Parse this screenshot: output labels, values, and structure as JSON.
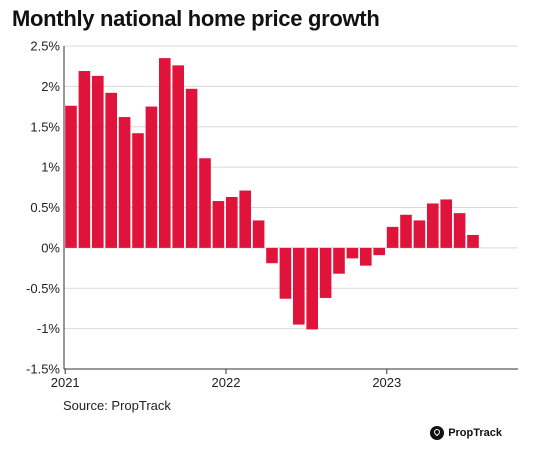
{
  "page": {
    "title": "Monthly national home price growth",
    "source": "Source: PropTrack",
    "brand": "PropTrack"
  },
  "colors": {
    "bar": "#e0133a",
    "grid": "#d9d9d9",
    "axis": "#333333"
  },
  "chart_data": {
    "type": "bar",
    "title": "Monthly national home price growth",
    "xlabel": "",
    "ylabel": "",
    "ylim": [
      -1.5,
      2.5
    ],
    "yticks": [
      {
        "value": 2.5,
        "label": "2.5%"
      },
      {
        "value": 2.0,
        "label": "2%"
      },
      {
        "value": 1.5,
        "label": "1.5%"
      },
      {
        "value": 1.0,
        "label": "1%"
      },
      {
        "value": 0.5,
        "label": "0.5%"
      },
      {
        "value": 0.0,
        "label": "0%"
      },
      {
        "value": -0.5,
        "label": "-0.5%"
      },
      {
        "value": -1.0,
        "label": "-1%"
      },
      {
        "value": -1.5,
        "label": "-1.5%"
      }
    ],
    "xticks": [
      {
        "index": 0,
        "label": "2021"
      },
      {
        "index": 12,
        "label": "2022"
      },
      {
        "index": 24,
        "label": "2023"
      }
    ],
    "grid": true,
    "legend": "none",
    "categories": [
      "Jan 2021",
      "Feb 2021",
      "Mar 2021",
      "Apr 2021",
      "May 2021",
      "Jun 2021",
      "Jul 2021",
      "Aug 2021",
      "Sep 2021",
      "Oct 2021",
      "Nov 2021",
      "Dec 2021",
      "Jan 2022",
      "Feb 2022",
      "Mar 2022",
      "Apr 2022",
      "May 2022",
      "Jun 2022",
      "Jul 2022",
      "Aug 2022",
      "Sep 2022",
      "Oct 2022",
      "Nov 2022",
      "Dec 2022",
      "Jan 2023",
      "Feb 2023",
      "Mar 2023",
      "Apr 2023",
      "May 2023",
      "Jun 2023",
      "Jul 2023"
    ],
    "values": [
      1.76,
      2.19,
      2.13,
      1.92,
      1.62,
      1.42,
      1.75,
      2.35,
      2.26,
      1.97,
      1.11,
      0.58,
      0.63,
      0.71,
      0.34,
      -0.19,
      -0.63,
      -0.95,
      -1.01,
      -0.62,
      -0.32,
      -0.13,
      -0.22,
      -0.09,
      0.26,
      0.41,
      0.34,
      0.55,
      0.6,
      0.43,
      0.16
    ]
  }
}
